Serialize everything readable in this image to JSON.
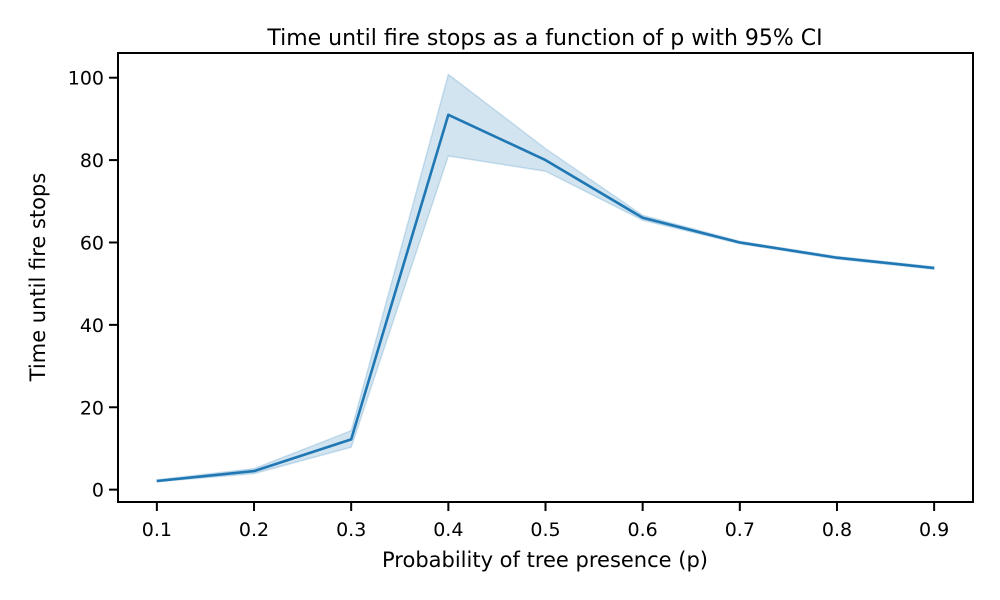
{
  "chart_data": {
    "type": "line",
    "title": "Time until fire stops as a function of p with 95% CI",
    "xlabel": "Probability of tree presence (p)",
    "ylabel": "Time until fire stops",
    "x": [
      0.1,
      0.2,
      0.3,
      0.4,
      0.5,
      0.6,
      0.7,
      0.8,
      0.9
    ],
    "x_tick_labels": [
      "0.1",
      "0.2",
      "0.3",
      "0.4",
      "0.5",
      "0.6",
      "0.7",
      "0.8",
      "0.9"
    ],
    "y_ticks": [
      0,
      20,
      40,
      60,
      80,
      100
    ],
    "y_tick_labels": [
      "0",
      "20",
      "40",
      "60",
      "80",
      "100"
    ],
    "xlim": [
      0.06,
      0.94
    ],
    "ylim": [
      -3,
      106
    ],
    "grid": false,
    "series": [
      {
        "values": [
          2.1,
          4.5,
          12.2,
          91.0,
          80.0,
          66.0,
          60.0,
          56.3,
          53.8
        ],
        "ci_low": [
          1.9,
          3.9,
          10.3,
          81.0,
          77.3,
          65.4,
          59.7,
          56.0,
          53.5
        ],
        "ci_high": [
          2.4,
          5.1,
          14.3,
          100.8,
          82.8,
          66.6,
          60.3,
          56.6,
          54.1
        ],
        "color": "#1f77b4",
        "band_color": "#1f77b4"
      }
    ]
  }
}
